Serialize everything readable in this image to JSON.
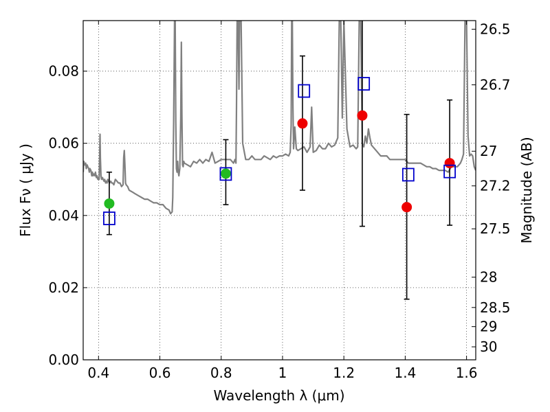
{
  "chart_data": {
    "type": "scatter",
    "xlabel": "Wavelength  λ (μm)",
    "ylabel": "Flux  Fν  ( μJy )",
    "ylabel_right": "Magnitude (AB)",
    "xlim": [
      0.35,
      1.63
    ],
    "ylim": [
      0.0,
      0.094
    ],
    "grid": true,
    "x_ticks": [
      0.4,
      0.6,
      0.8,
      1.0,
      1.2,
      1.4,
      1.6
    ],
    "x_tick_labels": [
      "0.4",
      "0.6",
      "0.8",
      "1",
      "1.2",
      "1.4",
      "1.6"
    ],
    "y_ticks": [
      0.0,
      0.02,
      0.04,
      0.06,
      0.08
    ],
    "y_tick_labels": [
      "0.00",
      "0.02",
      "0.04",
      "0.06",
      "0.08"
    ],
    "right_ticks": [
      {
        "flux": 0.0916,
        "label": "26.5"
      },
      {
        "flux": 0.0762,
        "label": "26.7"
      },
      {
        "flux": 0.0578,
        "label": "27"
      },
      {
        "flux": 0.0482,
        "label": "27.2"
      },
      {
        "flux": 0.0363,
        "label": "27.5"
      },
      {
        "flux": 0.0229,
        "label": "28"
      },
      {
        "flux": 0.0145,
        "label": "28.5"
      },
      {
        "flux": 0.0092,
        "label": "29"
      },
      {
        "flux": 0.0036,
        "label": "30"
      }
    ],
    "series": [
      {
        "kind": "model_spectrum",
        "color": "#808080",
        "x": [
          0.35,
          0.352,
          0.355,
          0.358,
          0.36,
          0.363,
          0.365,
          0.368,
          0.37,
          0.372,
          0.375,
          0.378,
          0.38,
          0.382,
          0.385,
          0.388,
          0.39,
          0.393,
          0.395,
          0.398,
          0.4,
          0.402,
          0.404,
          0.405,
          0.406,
          0.408,
          0.41,
          0.413,
          0.415,
          0.418,
          0.42,
          0.423,
          0.425,
          0.428,
          0.43,
          0.433,
          0.436,
          0.44,
          0.443,
          0.446,
          0.45,
          0.455,
          0.46,
          0.465,
          0.47,
          0.475,
          0.48,
          0.482,
          0.484,
          0.486,
          0.488,
          0.49,
          0.495,
          0.5,
          0.51,
          0.52,
          0.53,
          0.54,
          0.55,
          0.56,
          0.57,
          0.58,
          0.59,
          0.6,
          0.61,
          0.62,
          0.63,
          0.635,
          0.64,
          0.642,
          0.645,
          0.648,
          0.65,
          0.652,
          0.654,
          0.656,
          0.658,
          0.66,
          0.662,
          0.665,
          0.668,
          0.67,
          0.672,
          0.674,
          0.676,
          0.678,
          0.68,
          0.69,
          0.7,
          0.71,
          0.72,
          0.73,
          0.74,
          0.75,
          0.76,
          0.77,
          0.78,
          0.79,
          0.8,
          0.81,
          0.82,
          0.83,
          0.84,
          0.845,
          0.848,
          0.85,
          0.852,
          0.855,
          0.858,
          0.86,
          0.865,
          0.87,
          0.88,
          0.89,
          0.9,
          0.91,
          0.92,
          0.93,
          0.94,
          0.95,
          0.96,
          0.97,
          0.98,
          0.99,
          1.0,
          1.01,
          1.02,
          1.025,
          1.028,
          1.03,
          1.032,
          1.034,
          1.036,
          1.04,
          1.045,
          1.05,
          1.06,
          1.07,
          1.08,
          1.09,
          1.095,
          1.1,
          1.11,
          1.12,
          1.13,
          1.14,
          1.15,
          1.16,
          1.17,
          1.18,
          1.185,
          1.19,
          1.195,
          1.2,
          1.21,
          1.22,
          1.23,
          1.24,
          1.245,
          1.25,
          1.255,
          1.26,
          1.265,
          1.27,
          1.275,
          1.28,
          1.285,
          1.29,
          1.3,
          1.31,
          1.32,
          1.33,
          1.34,
          1.35,
          1.36,
          1.37,
          1.38,
          1.39,
          1.4,
          1.41,
          1.42,
          1.43,
          1.44,
          1.45,
          1.46,
          1.47,
          1.48,
          1.49,
          1.5,
          1.51,
          1.52,
          1.53,
          1.54,
          1.55,
          1.56,
          1.57,
          1.58,
          1.585,
          1.59,
          1.595,
          1.6,
          1.605,
          1.61,
          1.615,
          1.62,
          1.625,
          1.63
        ],
        "y": [
          0.052,
          0.055,
          0.054,
          0.0545,
          0.053,
          0.054,
          0.0535,
          0.053,
          0.052,
          0.053,
          0.0525,
          0.051,
          0.052,
          0.051,
          0.0515,
          0.051,
          0.052,
          0.0505,
          0.051,
          0.05,
          0.0505,
          0.05,
          0.058,
          0.0625,
          0.056,
          0.051,
          0.05,
          0.0505,
          0.05,
          0.0495,
          0.05,
          0.049,
          0.0495,
          0.049,
          0.05,
          0.0495,
          0.049,
          0.0495,
          0.049,
          0.049,
          0.0485,
          0.05,
          0.0495,
          0.049,
          0.049,
          0.048,
          0.0485,
          0.056,
          0.058,
          0.054,
          0.049,
          0.0485,
          0.048,
          0.047,
          0.0465,
          0.046,
          0.0455,
          0.045,
          0.0445,
          0.0445,
          0.044,
          0.0435,
          0.0435,
          0.043,
          0.043,
          0.042,
          0.0415,
          0.0405,
          0.041,
          0.045,
          0.066,
          0.094,
          0.094,
          0.066,
          0.053,
          0.052,
          0.055,
          0.052,
          0.051,
          0.053,
          0.067,
          0.088,
          0.068,
          0.054,
          0.0535,
          0.055,
          0.0545,
          0.054,
          0.0535,
          0.055,
          0.0545,
          0.0555,
          0.0545,
          0.0555,
          0.055,
          0.0575,
          0.0545,
          0.055,
          0.0555,
          0.0555,
          0.0555,
          0.0555,
          0.0545,
          0.0555,
          0.0545,
          0.07,
          0.094,
          0.094,
          0.075,
          0.094,
          0.094,
          0.06,
          0.0555,
          0.0555,
          0.0565,
          0.0555,
          0.0555,
          0.0555,
          0.0565,
          0.056,
          0.0555,
          0.0565,
          0.056,
          0.0565,
          0.0565,
          0.057,
          0.0565,
          0.0575,
          0.065,
          0.094,
          0.094,
          0.07,
          0.0585,
          0.0645,
          0.0585,
          0.058,
          0.0585,
          0.059,
          0.0575,
          0.059,
          0.07,
          0.0575,
          0.058,
          0.0595,
          0.0585,
          0.0585,
          0.06,
          0.059,
          0.0595,
          0.0615,
          0.094,
          0.094,
          0.067,
          0.094,
          0.064,
          0.059,
          0.0595,
          0.0585,
          0.059,
          0.094,
          0.094,
          0.06,
          0.059,
          0.062,
          0.06,
          0.064,
          0.0615,
          0.0595,
          0.0585,
          0.0575,
          0.0565,
          0.0565,
          0.0565,
          0.0555,
          0.0555,
          0.0555,
          0.0555,
          0.0555,
          0.0555,
          0.0545,
          0.0545,
          0.0545,
          0.0545,
          0.0545,
          0.054,
          0.0535,
          0.0535,
          0.053,
          0.053,
          0.0525,
          0.0525,
          0.0525,
          0.052,
          0.0535,
          0.0535,
          0.0535,
          0.0545,
          0.0555,
          0.057,
          0.094,
          0.094,
          0.062,
          0.0565,
          0.057,
          0.0565,
          0.0535,
          0.0525
        ]
      },
      {
        "kind": "model_magnitudes",
        "marker": "open-square",
        "color": "#0000cc",
        "x": [
          0.435,
          0.815,
          1.07,
          1.265,
          1.41,
          1.545
        ],
        "y": [
          0.0392,
          0.0515,
          0.0745,
          0.0765,
          0.0513,
          0.0522
        ]
      },
      {
        "kind": "observed_nondetect",
        "marker": "filled-circle",
        "color": "#22bb22",
        "x": [
          0.435,
          0.815
        ],
        "y": [
          0.0433,
          0.0516
        ],
        "yerr_low": [
          0.0347,
          0.043
        ],
        "yerr_high": [
          0.052,
          0.061
        ]
      },
      {
        "kind": "observed_detect",
        "marker": "filled-circle",
        "color": "#ee0000",
        "x": [
          1.065,
          1.26,
          1.405,
          1.545
        ],
        "y": [
          0.0655,
          0.0677,
          0.0423,
          0.0545
        ],
        "yerr_low": [
          0.047,
          0.037,
          0.0168,
          0.0373
        ],
        "yerr_high": [
          0.0842,
          0.0945,
          0.068,
          0.072
        ]
      }
    ]
  }
}
